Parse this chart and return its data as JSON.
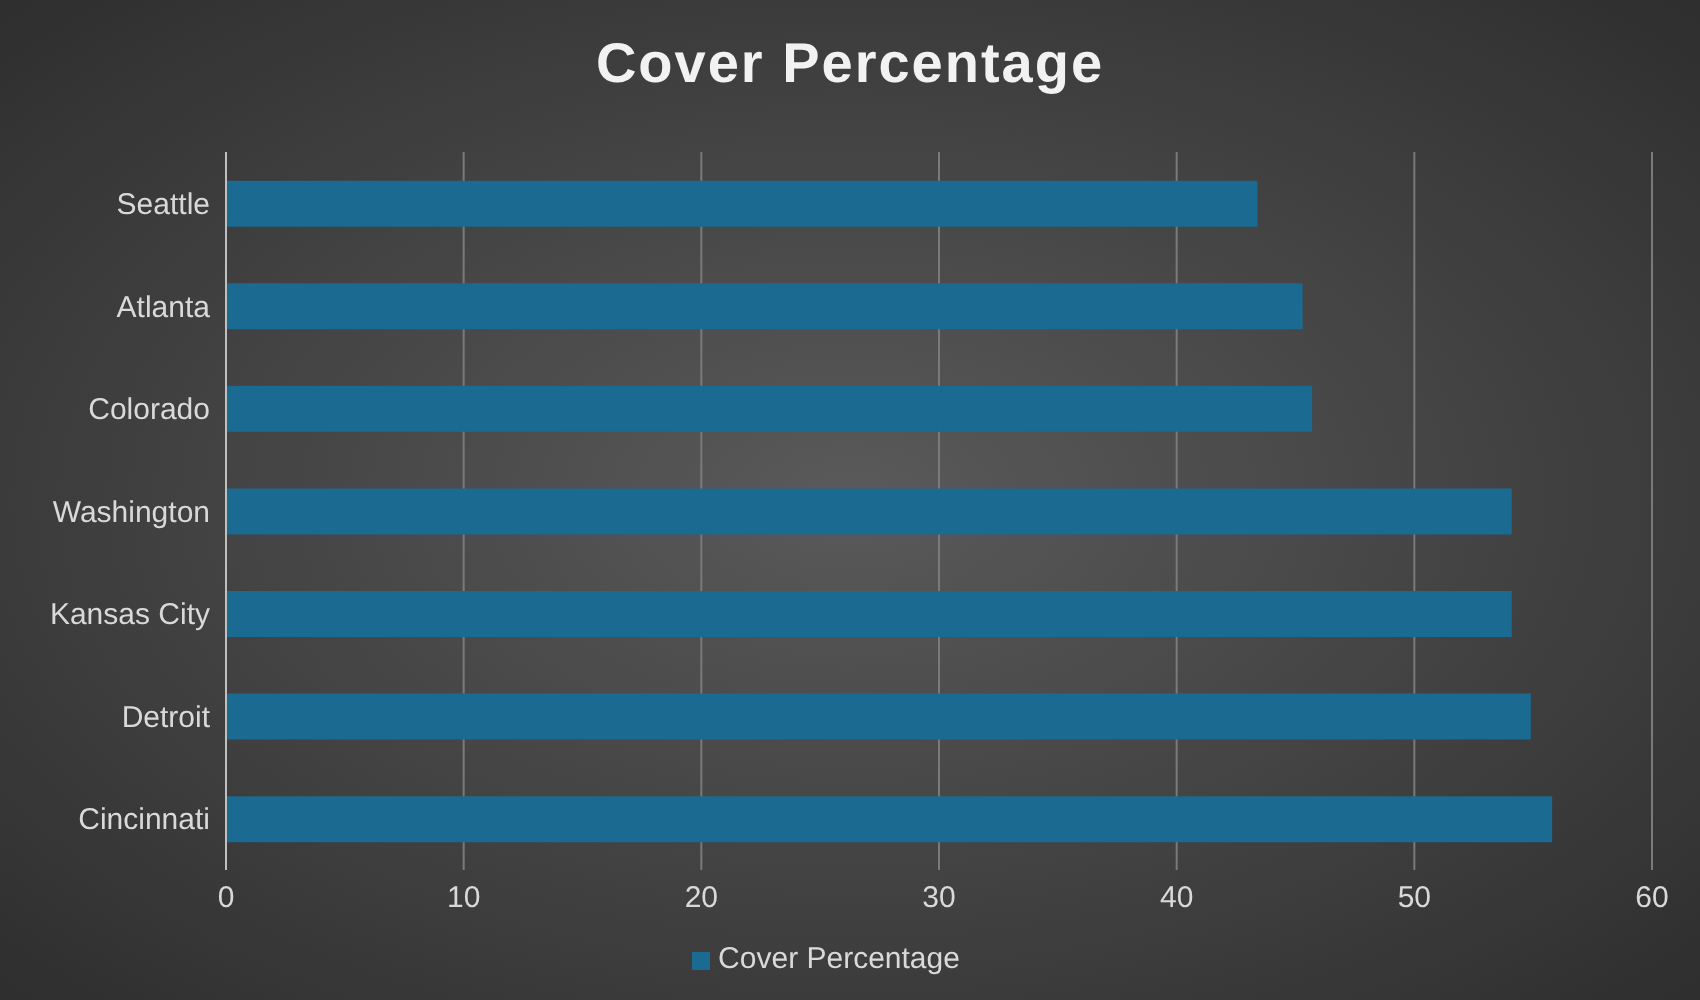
{
  "chart_data": {
    "type": "bar",
    "orientation": "horizontal",
    "title": "Cover Percentage",
    "categories": [
      "Seattle",
      "Atlanta",
      "Colorado",
      "Washington",
      "Kansas City",
      "Detroit",
      "Cincinnati"
    ],
    "series": [
      {
        "name": "Cover Percentage",
        "color": "#1b6a91",
        "values": [
          43.4,
          45.3,
          45.7,
          54.1,
          54.1,
          54.9,
          55.8
        ]
      }
    ],
    "xlim": [
      0,
      60
    ],
    "xticks": [
      0,
      10,
      20,
      30,
      40,
      50,
      60
    ],
    "grid": "x",
    "legend": "bottom"
  }
}
